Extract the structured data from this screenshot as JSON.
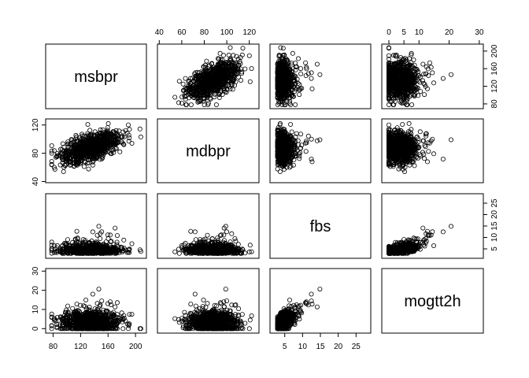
{
  "chart_data": {
    "type": "scatter",
    "layout": "pairs",
    "variables": [
      "msbpr",
      "mdbpr",
      "fbs",
      "mogtt2h"
    ],
    "ranges": {
      "msbpr": [
        75,
        210
      ],
      "mdbpr": [
        42,
        125
      ],
      "fbs": [
        2,
        28
      ],
      "mogtt2h": [
        -1,
        30
      ]
    },
    "axes": {
      "msbpr": {
        "ticks": [
          80,
          120,
          160,
          200
        ],
        "tick_labels": [
          "80",
          "120",
          "160",
          "200"
        ],
        "side": "right",
        "row": 0
      },
      "mdbpr": {
        "ticks": [
          40,
          60,
          80,
          100,
          120
        ],
        "tick_labels": [
          "40",
          "60",
          "80",
          "100",
          "120"
        ],
        "side": "top",
        "col": 1
      },
      "mdbpr_left": {
        "ticks": [
          40,
          80,
          120
        ],
        "tick_labels": [
          "40",
          "80",
          "120"
        ],
        "side": "left",
        "row": 1
      },
      "fbs": {
        "ticks": [
          5,
          10,
          15,
          20,
          25
        ],
        "tick_labels": [
          "5",
          "10",
          "15",
          "20",
          "25"
        ],
        "side": "bottom",
        "col": 2
      },
      "fbs_right": {
        "ticks": [
          5,
          10,
          15,
          20,
          25
        ],
        "tick_labels": [
          "5",
          "10",
          "15",
          "20",
          "25"
        ],
        "side": "right",
        "row": 2
      },
      "mogtt2h": {
        "ticks": [
          0,
          5,
          10,
          20,
          30
        ],
        "tick_labels": [
          "0",
          "5",
          "10",
          "20",
          "30"
        ],
        "side": "top",
        "col": 3
      },
      "mogtt2h_left": {
        "ticks": [
          0,
          10,
          20,
          30
        ],
        "tick_labels": [
          "0",
          "10",
          "20",
          "30"
        ],
        "side": "left",
        "row": 3
      },
      "msbpr_bottom": {
        "ticks": [
          80,
          120,
          160,
          200
        ],
        "tick_labels": [
          "80",
          "120",
          "160",
          "200"
        ],
        "side": "bottom",
        "col": 0
      }
    },
    "approx_points_per_panel": 900,
    "relationships": {
      "msbpr_mdbpr": "strong positive",
      "fbs_mogtt2h": "positive",
      "others": "weak"
    },
    "grid": false,
    "legend": "none",
    "marker": "open-circle",
    "color": "#000000"
  }
}
